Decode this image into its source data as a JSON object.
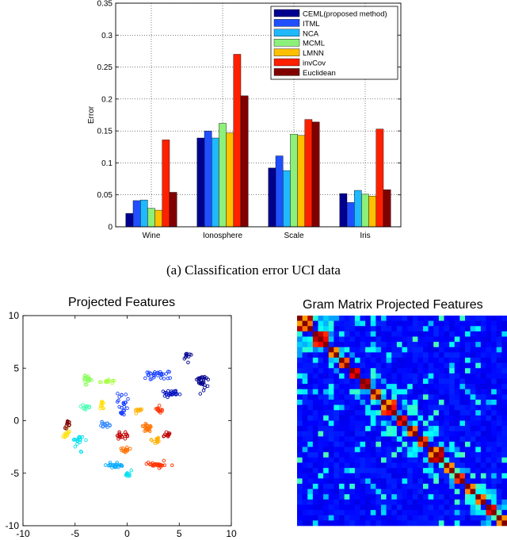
{
  "caption": "(a)  Classification error UCI data",
  "colors": {
    "series": [
      "#00008f",
      "#1f4fff",
      "#20b8ff",
      "#8cf07a",
      "#ffc000",
      "#ff2000",
      "#800000"
    ]
  },
  "chart_data": [
    {
      "type": "bar",
      "title": "",
      "xlabel": "",
      "ylabel": "Error",
      "ylim": [
        0,
        0.35
      ],
      "yticks": [
        "0",
        "0.05",
        "0.1",
        "0.15",
        "0.2",
        "0.25",
        "0.3",
        "0.35"
      ],
      "yticks_values": [
        0,
        0.05,
        0.1,
        0.15,
        0.2,
        0.25,
        0.3,
        0.35
      ],
      "categories": [
        "Wine",
        "Ionosphere",
        "Scale",
        "Iris"
      ],
      "legend_position": "top-right",
      "grid": true,
      "series": [
        {
          "name": "CEML(proposed method)",
          "values": [
            0.021,
            0.139,
            0.092,
            0.052
          ]
        },
        {
          "name": "ITML",
          "values": [
            0.041,
            0.15,
            0.111,
            0.038
          ]
        },
        {
          "name": "NCA",
          "values": [
            0.042,
            0.139,
            0.088,
            0.057
          ]
        },
        {
          "name": "MCML",
          "values": [
            0.029,
            0.162,
            0.145,
            0.051
          ]
        },
        {
          "name": "LMNN",
          "values": [
            0.026,
            0.147,
            0.143,
            0.048
          ]
        },
        {
          "name": "invCov",
          "values": [
            0.136,
            0.27,
            0.168,
            0.153
          ]
        },
        {
          "name": "Euclidean",
          "values": [
            0.054,
            0.205,
            0.164,
            0.058
          ]
        }
      ]
    },
    {
      "type": "scatter",
      "title": "Projected Features",
      "xlim": [
        -10,
        10
      ],
      "ylim": [
        -10,
        10
      ],
      "xticks": [
        "-10",
        "-5",
        "0",
        "5",
        "10"
      ],
      "xticks_values": [
        -10,
        -5,
        0,
        5,
        10
      ],
      "yticks": [
        "-10",
        "-5",
        "0",
        "5",
        "10"
      ],
      "yticks_values": [
        -10,
        -5,
        0,
        5,
        10
      ],
      "clusters": [
        {
          "color": "#00008f",
          "center": [
            7.1,
            3.8
          ],
          "spread": [
            0.5,
            0.9
          ],
          "count": 30
        },
        {
          "color": "#00008f",
          "center": [
            5.8,
            6.0
          ],
          "spread": [
            0.3,
            0.4
          ],
          "count": 10
        },
        {
          "color": "#0010c0",
          "center": [
            4.3,
            2.5
          ],
          "spread": [
            0.7,
            0.4
          ],
          "count": 24
        },
        {
          "color": "#1840ff",
          "center": [
            3.0,
            4.3
          ],
          "spread": [
            1.3,
            0.5
          ],
          "count": 30
        },
        {
          "color": "#1840ff",
          "center": [
            -0.4,
            1.6
          ],
          "spread": [
            0.6,
            0.9
          ],
          "count": 26
        },
        {
          "color": "#3a8cff",
          "center": [
            -2.2,
            -0.4
          ],
          "spread": [
            0.6,
            0.3
          ],
          "count": 16
        },
        {
          "color": "#00a8ff",
          "center": [
            -1.2,
            -4.3
          ],
          "spread": [
            0.9,
            0.3
          ],
          "count": 22
        },
        {
          "color": "#00e0f0",
          "center": [
            -4.6,
            -2.1
          ],
          "spread": [
            0.5,
            0.8
          ],
          "count": 18
        },
        {
          "color": "#00e0f0",
          "center": [
            0.1,
            -5.0
          ],
          "spread": [
            0.4,
            0.4
          ],
          "count": 10
        },
        {
          "color": "#40ffb0",
          "center": [
            -4.0,
            1.3
          ],
          "spread": [
            0.5,
            0.3
          ],
          "count": 10
        },
        {
          "color": "#8cff60",
          "center": [
            -4.0,
            3.9
          ],
          "spread": [
            0.6,
            0.6
          ],
          "count": 22
        },
        {
          "color": "#a8ff40",
          "center": [
            -1.8,
            3.7
          ],
          "spread": [
            0.7,
            0.2
          ],
          "count": 16
        },
        {
          "color": "#ffe000",
          "center": [
            -2.4,
            1.4
          ],
          "spread": [
            0.3,
            0.5
          ],
          "count": 12
        },
        {
          "color": "#ffe000",
          "center": [
            -5.7,
            -1.2
          ],
          "spread": [
            0.4,
            0.5
          ],
          "count": 12
        },
        {
          "color": "#ffb000",
          "center": [
            1.0,
            1.0
          ],
          "spread": [
            0.4,
            0.3
          ],
          "count": 10
        },
        {
          "color": "#ffb000",
          "center": [
            2.9,
            -1.8
          ],
          "spread": [
            0.6,
            0.4
          ],
          "count": 16
        },
        {
          "color": "#ff7000",
          "center": [
            1.8,
            -0.8
          ],
          "spread": [
            0.6,
            0.5
          ],
          "count": 20
        },
        {
          "color": "#ff7000",
          "center": [
            -0.1,
            -2.7
          ],
          "spread": [
            0.6,
            0.3
          ],
          "count": 14
        },
        {
          "color": "#ff3000",
          "center": [
            3.1,
            1.0
          ],
          "spread": [
            0.4,
            0.4
          ],
          "count": 12
        },
        {
          "color": "#ff3000",
          "center": [
            2.9,
            -4.2
          ],
          "spread": [
            1.2,
            0.3
          ],
          "count": 26
        },
        {
          "color": "#c00000",
          "center": [
            -0.5,
            -1.4
          ],
          "spread": [
            0.5,
            0.4
          ],
          "count": 20
        },
        {
          "color": "#c00000",
          "center": [
            3.9,
            -1.3
          ],
          "spread": [
            0.4,
            0.4
          ],
          "count": 12
        },
        {
          "color": "#800000",
          "center": [
            -5.8,
            -0.2
          ],
          "spread": [
            0.4,
            0.7
          ],
          "count": 12
        }
      ]
    },
    {
      "type": "heatmap",
      "title": "Gram Matrix Projected Features",
      "size": 40,
      "colormap": "jet",
      "blocks": [
        3,
        3,
        2,
        2,
        2,
        2,
        2,
        3,
        2,
        2,
        2,
        3,
        2,
        2,
        2,
        2,
        2,
        2,
        2
      ]
    }
  ]
}
